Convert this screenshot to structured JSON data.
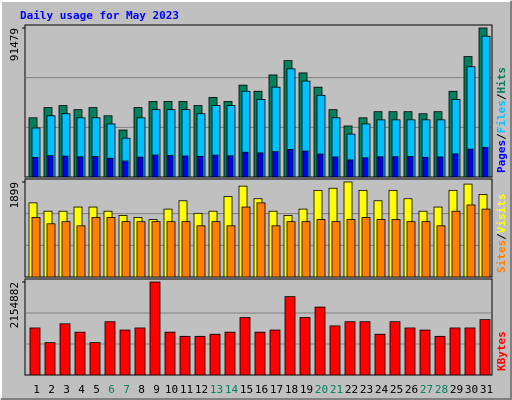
{
  "title": "Daily usage for May 2023",
  "legend_separator": "/",
  "chart_data": [
    {
      "type": "bar",
      "ylim": [
        0,
        91479
      ],
      "yticks": [
        91479
      ],
      "series": [
        {
          "name": "Hits",
          "color": "#00805c",
          "values": [
            36343,
            42609,
            43862,
            41356,
            42609,
            37596,
            28824,
            42609,
            46368,
            46368,
            46368,
            43862,
            48875,
            46368,
            56394,
            52634,
            62660,
            71432,
            63913,
            55141,
            41356,
            31330,
            36343,
            40102,
            40102,
            40102,
            38849,
            40102,
            52634,
            73939,
            91479
          ]
        },
        {
          "name": "Files",
          "color": "#00c0ff",
          "values": [
            30077,
            37596,
            38849,
            36343,
            36343,
            32583,
            23811,
            36343,
            41356,
            41356,
            41356,
            38849,
            43862,
            43862,
            52634,
            47622,
            55141,
            66420,
            58900,
            50128,
            36343,
            26317,
            32583,
            35090,
            35090,
            35090,
            35090,
            35090,
            47622,
            67673,
            86471
          ]
        },
        {
          "name": "Pages",
          "color": "#0000ff",
          "values": [
            12000,
            13100,
            12800,
            12400,
            12600,
            11500,
            9800,
            12200,
            13500,
            13200,
            12900,
            12700,
            13400,
            13000,
            15200,
            14800,
            15600,
            16900,
            15900,
            14100,
            12300,
            10500,
            11800,
            12400,
            12500,
            12600,
            12100,
            12300,
            14200,
            17100,
            18200
          ]
        }
      ]
    },
    {
      "type": "bar",
      "ylim": [
        0,
        1899
      ],
      "yticks": [
        1899
      ],
      "series": [
        {
          "name": "Visits",
          "color": "#ffff00",
          "values": [
            1482,
            1315,
            1315,
            1398,
            1398,
            1315,
            1231,
            1190,
            1148,
            1357,
            1524,
            1273,
            1315,
            1607,
            1816,
            1565,
            1315,
            1231,
            1357,
            1732,
            1774,
            1899,
            1732,
            1524,
            1732,
            1565,
            1315,
            1398,
            1732,
            1857,
            1649
          ]
        },
        {
          "name": "Sites",
          "color": "#ff8000",
          "values": [
            1190,
            1064,
            1106,
            1023,
            1190,
            1190,
            1106,
            1106,
            1106,
            1106,
            1106,
            1023,
            1106,
            1023,
            1398,
            1482,
            1023,
            1106,
            1106,
            1148,
            1106,
            1148,
            1190,
            1148,
            1148,
            1106,
            1106,
            1023,
            1315,
            1440,
            1357
          ]
        }
      ]
    },
    {
      "type": "bar",
      "ylim": [
        0,
        2154882
      ],
      "yticks": [
        2154882
      ],
      "categories": [
        "1",
        "2",
        "3",
        "4",
        "5",
        "6",
        "7",
        "8",
        "9",
        "10",
        "11",
        "12",
        "13",
        "14",
        "15",
        "16",
        "17",
        "18",
        "19",
        "20",
        "21",
        "22",
        "23",
        "24",
        "25",
        "26",
        "27",
        "28",
        "29",
        "30",
        "31"
      ],
      "category_colors": [
        "#000000",
        "#000000",
        "#000000",
        "#000000",
        "#000000",
        "#00805c",
        "#00805c",
        "#000000",
        "#000000",
        "#000000",
        "#000000",
        "#000000",
        "#00805c",
        "#00805c",
        "#000000",
        "#000000",
        "#000000",
        "#000000",
        "#000000",
        "#00805c",
        "#00805c",
        "#000000",
        "#000000",
        "#000000",
        "#000000",
        "#000000",
        "#00805c",
        "#00805c",
        "#000000",
        "#000000",
        "#000000"
      ],
      "series": [
        {
          "name": "KBytes",
          "color": "#ff0000",
          "values": [
            1089540,
            750572,
            1186388,
            992692,
            750572,
            1234812,
            1041116,
            1089540,
            2154882,
            992692,
            895844,
            895844,
            944268,
            992692,
            1331660,
            992692,
            1041116,
            1815900,
            1331660,
            1573780,
            1137964,
            1234812,
            1234812,
            944268,
            1234812,
            1089540,
            1041116,
            895844,
            1089540,
            1089540,
            1283236
          ]
        }
      ]
    }
  ]
}
